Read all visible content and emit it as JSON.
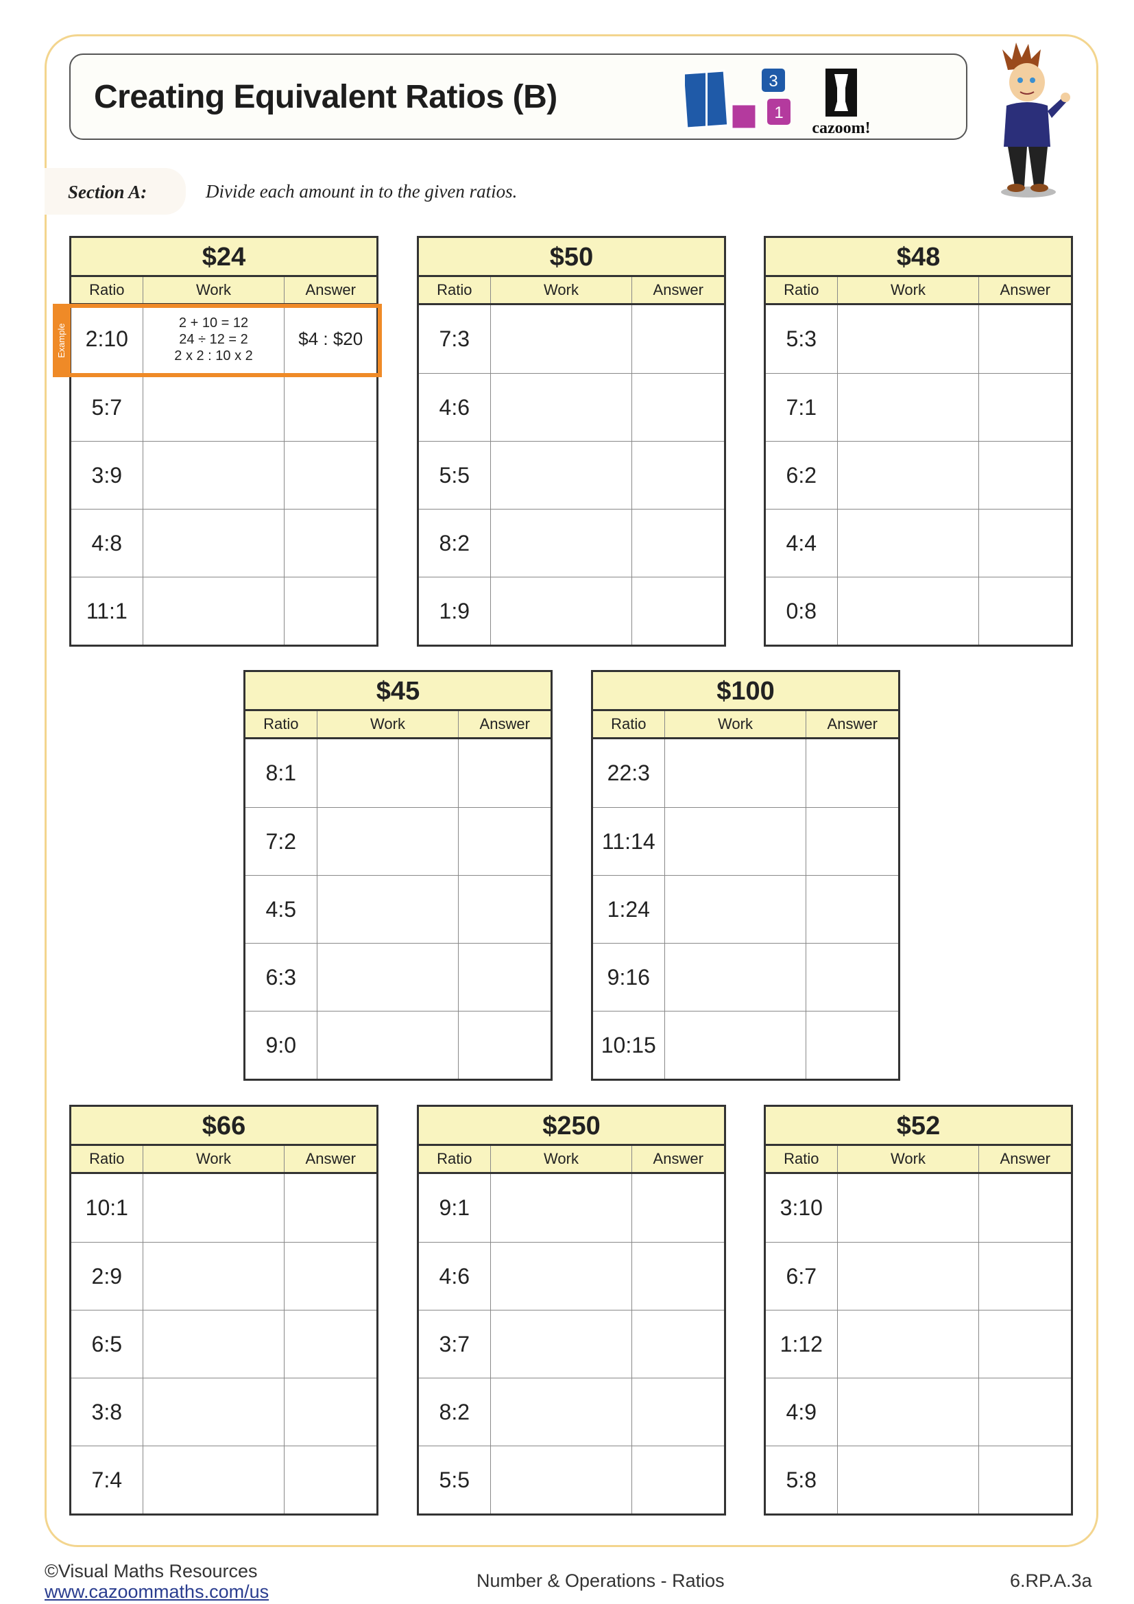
{
  "header": {
    "title": "Creating Equivalent Ratios (B)",
    "logo_text": "cazoom!",
    "logo_digits": [
      "3",
      "1"
    ]
  },
  "section": {
    "label": "Section A:",
    "instruction": "Divide each amount in to the given ratios."
  },
  "column_headers": {
    "ratio": "Ratio",
    "work": "Work",
    "answer": "Answer"
  },
  "example": {
    "label": "Example",
    "work": [
      "2 + 10 = 12",
      "24 ÷ 12 = 2",
      "2 x 2 : 10 x 2"
    ],
    "answer": "$4 : $20"
  },
  "tables": [
    {
      "amount": "$24",
      "ratios": [
        "2:10",
        "5:7",
        "3:9",
        "4:8",
        "11:1"
      ]
    },
    {
      "amount": "$50",
      "ratios": [
        "7:3",
        "4:6",
        "5:5",
        "8:2",
        "1:9"
      ]
    },
    {
      "amount": "$48",
      "ratios": [
        "5:3",
        "7:1",
        "6:2",
        "4:4",
        "0:8"
      ]
    },
    {
      "amount": "$45",
      "ratios": [
        "8:1",
        "7:2",
        "4:5",
        "6:3",
        "9:0"
      ]
    },
    {
      "amount": "$100",
      "ratios": [
        "22:3",
        "11:14",
        "1:24",
        "9:16",
        "10:15"
      ]
    },
    {
      "amount": "$66",
      "ratios": [
        "10:1",
        "2:9",
        "6:5",
        "3:8",
        "7:4"
      ]
    },
    {
      "amount": "$250",
      "ratios": [
        "9:1",
        "4:6",
        "3:7",
        "8:2",
        "5:5"
      ]
    },
    {
      "amount": "$52",
      "ratios": [
        "3:10",
        "6:7",
        "1:12",
        "4:9",
        "5:8"
      ]
    }
  ],
  "footer": {
    "copyright": "©Visual Maths Resources",
    "link": "www.cazoommaths.com/us",
    "topic": "Number & Operations - Ratios",
    "standard": "6.RP.A.3a"
  },
  "colors": {
    "accent": "#ef8a27",
    "header_fill": "#f9f4c0",
    "frame": "#f3d58e",
    "logo_blue": "#1f5aa8",
    "logo_magenta": "#b43a9e"
  }
}
